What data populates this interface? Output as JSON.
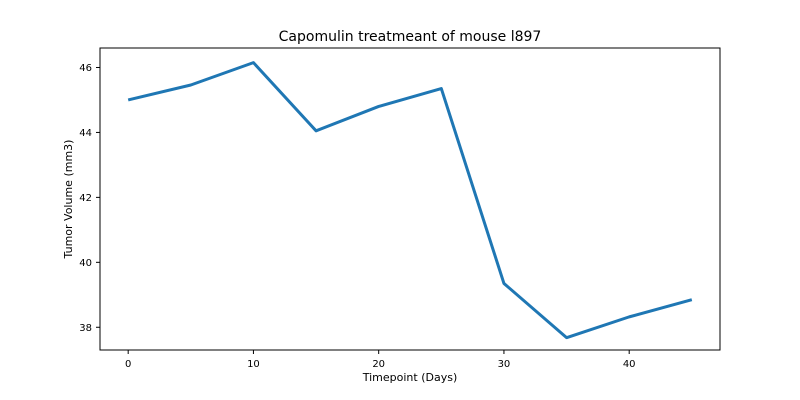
{
  "chart_data": {
    "type": "line",
    "title": "Capomulin treatmeant of mouse l897",
    "xlabel": "Timepoint (Days)",
    "ylabel": "Tumor Volume (mm3)",
    "xlim": [
      -2.25,
      47.25
    ],
    "ylim": [
      37.3,
      46.6
    ],
    "xticks": [
      0,
      10,
      20,
      30,
      40
    ],
    "yticks": [
      38,
      40,
      42,
      44,
      46
    ],
    "grid": false,
    "series": [
      {
        "color": "#1f77b4",
        "x": [
          0,
          5,
          10,
          15,
          20,
          25,
          30,
          35,
          40,
          45
        ],
        "y": [
          45.0,
          45.46,
          46.15,
          44.05,
          44.8,
          45.35,
          39.35,
          37.68,
          38.32,
          38.85
        ]
      }
    ]
  }
}
